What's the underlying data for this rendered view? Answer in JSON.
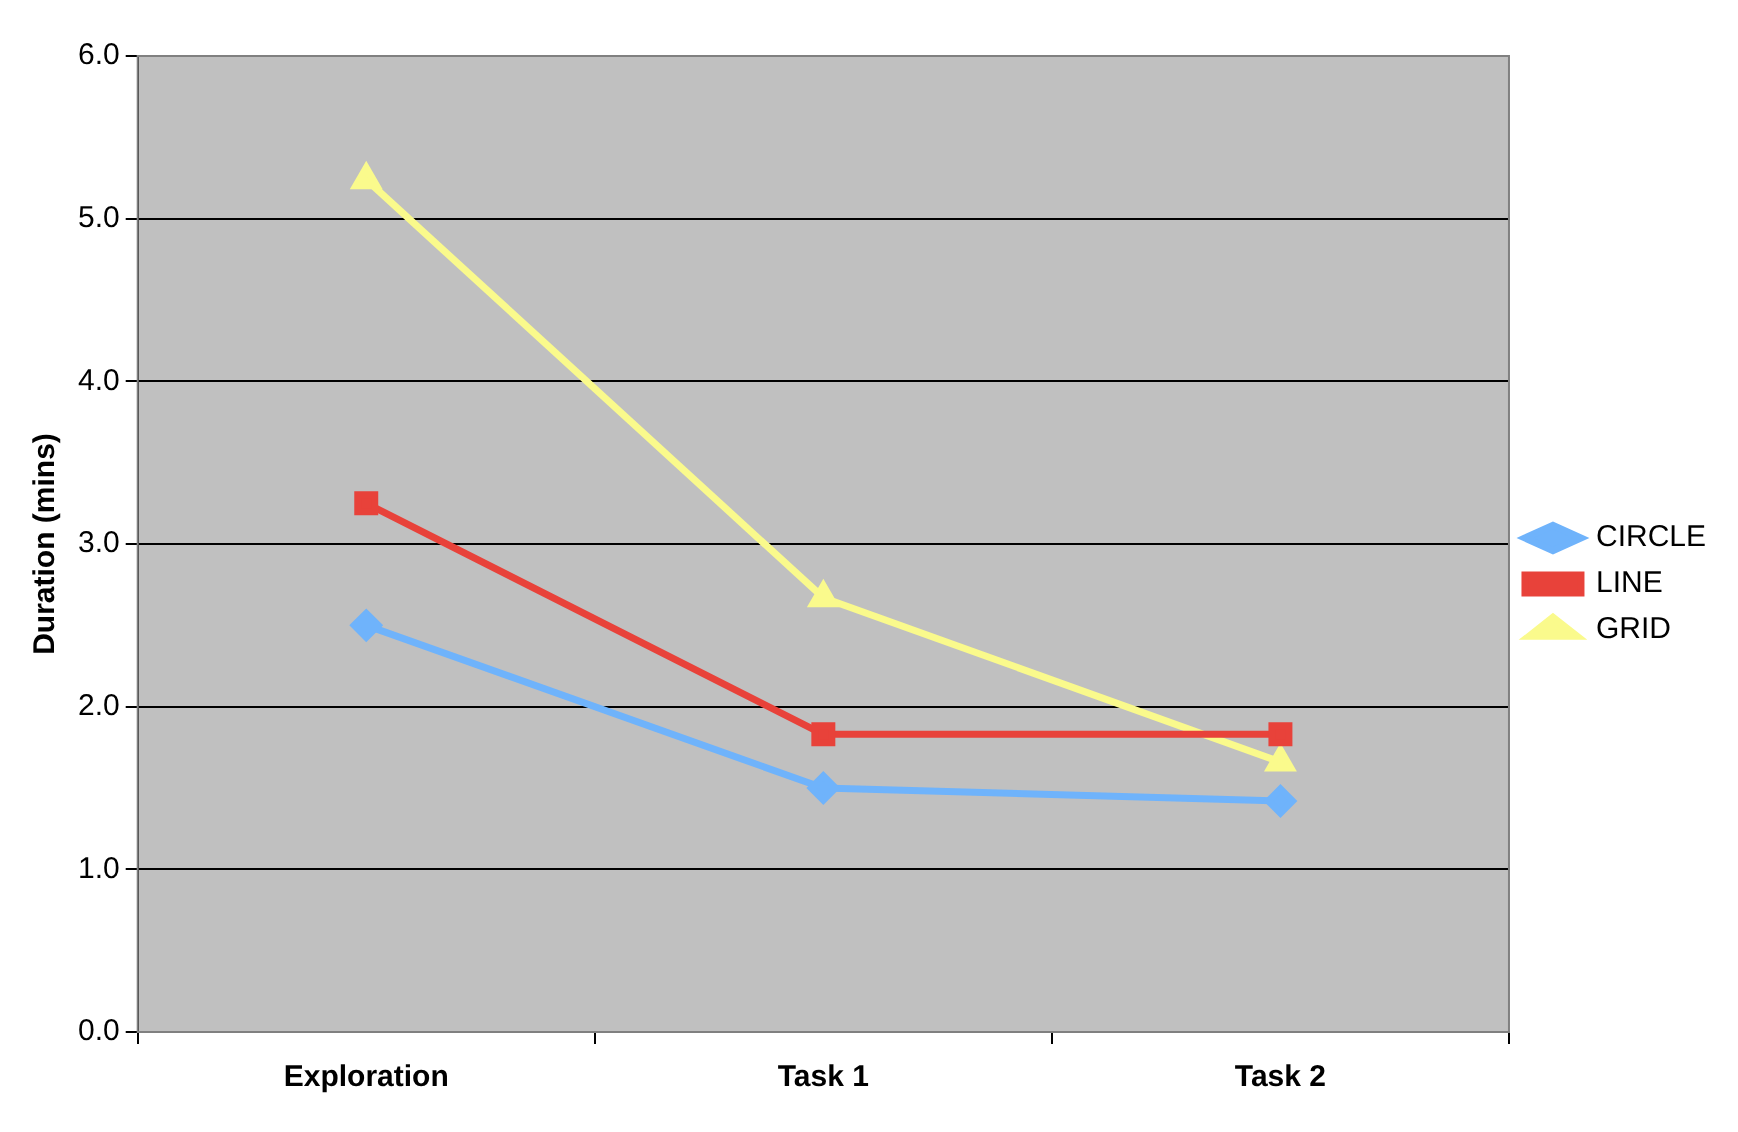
{
  "chart_data": {
    "type": "line",
    "ylabel": "Duration (mins)",
    "categories": [
      "Exploration",
      "Task 1",
      "Task 2"
    ],
    "series": [
      {
        "name": "CIRCLE",
        "color": "#6fb3fb",
        "marker": "diamond",
        "values": [
          2.5,
          1.5,
          1.42
        ]
      },
      {
        "name": "LINE",
        "color": "#e8423a",
        "marker": "square",
        "values": [
          3.25,
          1.83,
          1.83
        ]
      },
      {
        "name": "GRID",
        "color": "#fafa8c",
        "marker": "triangle",
        "values": [
          5.24,
          2.67,
          1.66
        ]
      }
    ],
    "ylim": [
      0,
      6
    ],
    "yticks": [
      {
        "value": 0,
        "label": "0.0"
      },
      {
        "value": 1,
        "label": "1.0"
      },
      {
        "value": 2,
        "label": "2.0"
      },
      {
        "value": 3,
        "label": "3.0"
      },
      {
        "value": 4,
        "label": "4.0"
      },
      {
        "value": 5,
        "label": "5.0"
      },
      {
        "value": 6,
        "label": "6.0"
      }
    ],
    "grid": "y",
    "legend": "right",
    "line_style": "solid"
  }
}
